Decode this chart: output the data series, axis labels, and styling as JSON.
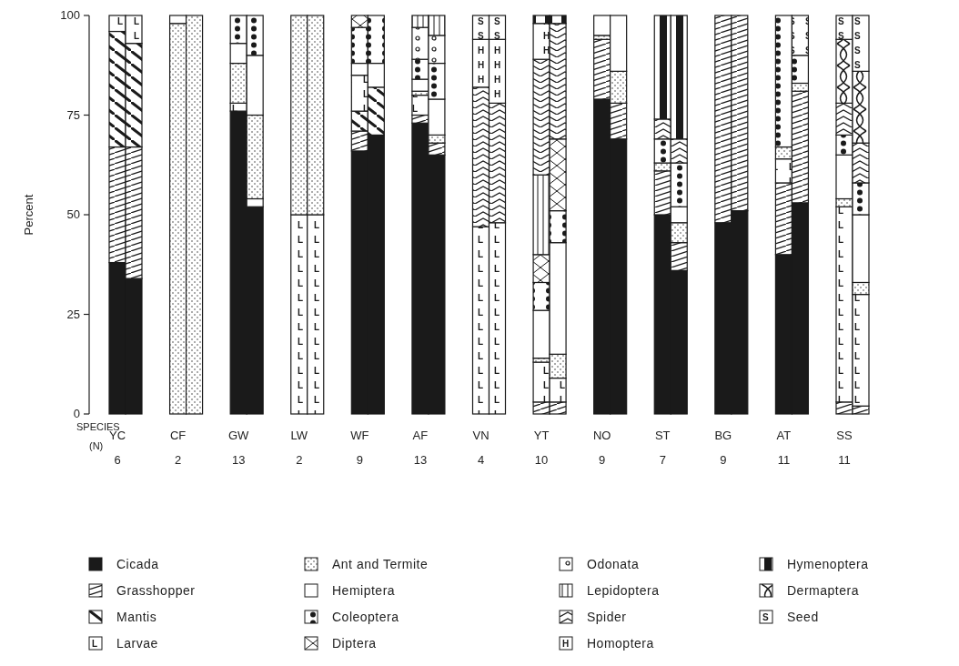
{
  "chart_data": {
    "type": "bar",
    "stacked": true,
    "ylabel": "Percent",
    "categories": [
      "YC",
      null,
      "CF",
      null,
      "GW",
      null,
      "LW",
      null,
      "WF",
      null,
      "AF",
      null,
      "VN",
      null,
      "YT",
      null,
      "NO",
      null,
      "ST",
      null,
      "BG",
      null,
      "AT",
      null,
      "SS",
      null
    ],
    "ylim": [
      0,
      100
    ],
    "yticks": [
      0,
      25,
      50,
      75,
      100
    ],
    "grid": false,
    "legend": "bottom",
    "annotations": [
      "SPECIES",
      "(N)",
      "6",
      "2",
      "13",
      "2",
      "9",
      "13",
      "4",
      "10",
      "9",
      "7",
      "9",
      "11",
      "11"
    ],
    "series": [
      {
        "name": "Cicada",
        "color": "#1a1a1a",
        "values": [
          38,
          34,
          0,
          0,
          76,
          52,
          0,
          0,
          66,
          70,
          73,
          65,
          0,
          0,
          0,
          0,
          79,
          69,
          50,
          36,
          48,
          51,
          40,
          53,
          0,
          0
        ]
      },
      {
        "name": "Grasshopper",
        "color": "#1a1a1a",
        "values": [
          29,
          33,
          0,
          0,
          0,
          0,
          0,
          0,
          5,
          0,
          2,
          3,
          0,
          0,
          3,
          3,
          15,
          9,
          11,
          7,
          52,
          49,
          18,
          28,
          3,
          2
        ]
      },
      {
        "name": "Mantis",
        "color": "#1a1a1a",
        "values": [
          29,
          26,
          0,
          0,
          0,
          0,
          0,
          0,
          5,
          12,
          0,
          0,
          0,
          0,
          0,
          0,
          0,
          0,
          0,
          0,
          0,
          0,
          0,
          0,
          0,
          0
        ]
      },
      {
        "name": "Larvae",
        "color": "#1a1a1a",
        "values": [
          4,
          7,
          0,
          0,
          2,
          2,
          50,
          50,
          9,
          0,
          5,
          0,
          47,
          48,
          10,
          6,
          0,
          0,
          0,
          0,
          0,
          0,
          6,
          0,
          49,
          28
        ]
      },
      {
        "name": "Ant and Termite",
        "color": "#1a1a1a",
        "values": [
          0,
          0,
          98,
          100,
          10,
          21,
          50,
          50,
          0,
          0,
          1,
          2,
          0,
          0,
          1,
          6,
          1,
          8,
          2,
          5,
          0,
          0,
          3,
          2,
          2,
          3
        ]
      },
      {
        "name": "Hemiptera",
        "color": "#1a1a1a",
        "values": [
          0,
          0,
          2,
          0,
          5,
          15,
          0,
          0,
          3,
          6,
          3,
          9,
          0,
          0,
          12,
          28,
          5,
          14,
          0,
          4,
          0,
          0,
          0,
          0,
          11,
          17
        ]
      },
      {
        "name": "Coleoptera",
        "color": "#1a1a1a",
        "values": [
          0,
          0,
          0,
          0,
          7,
          10,
          0,
          0,
          9,
          12,
          5,
          9,
          0,
          0,
          7,
          8,
          0,
          0,
          6,
          11,
          0,
          0,
          33,
          7,
          5,
          8
        ]
      },
      {
        "name": "Diptera",
        "color": "#1a1a1a",
        "values": [
          0,
          0,
          0,
          0,
          0,
          0,
          0,
          0,
          3,
          0,
          0,
          0,
          0,
          0,
          7,
          18,
          0,
          0,
          0,
          0,
          0,
          0,
          0,
          0,
          0,
          0
        ]
      },
      {
        "name": "Odonata",
        "color": "#1a1a1a",
        "values": [
          0,
          0,
          0,
          0,
          0,
          0,
          0,
          0,
          0,
          0,
          8,
          7,
          0,
          0,
          0,
          0,
          0,
          0,
          0,
          0,
          0,
          0,
          0,
          0,
          0,
          0
        ]
      },
      {
        "name": "Lepidoptera",
        "color": "#1a1a1a",
        "values": [
          0,
          0,
          0,
          0,
          0,
          0,
          0,
          0,
          0,
          0,
          3,
          5,
          0,
          0,
          20,
          0,
          0,
          0,
          0,
          0,
          0,
          0,
          0,
          0,
          0,
          0
        ]
      },
      {
        "name": "Spider",
        "color": "#1a1a1a",
        "values": [
          0,
          0,
          0,
          0,
          0,
          0,
          0,
          0,
          0,
          0,
          0,
          0,
          35,
          30,
          29,
          29,
          0,
          0,
          5,
          6,
          0,
          0,
          0,
          0,
          8,
          10
        ]
      },
      {
        "name": "Homoptera",
        "color": "#1a1a1a",
        "values": [
          0,
          0,
          0,
          0,
          0,
          0,
          0,
          0,
          0,
          0,
          0,
          0,
          12,
          16,
          9,
          0,
          0,
          0,
          0,
          0,
          0,
          0,
          0,
          0,
          0,
          0
        ]
      },
      {
        "name": "Hymenoptera",
        "color": "#1a1a1a",
        "values": [
          0,
          0,
          0,
          0,
          0,
          0,
          0,
          0,
          0,
          0,
          0,
          0,
          0,
          0,
          2,
          2,
          0,
          0,
          26,
          31,
          0,
          0,
          0,
          0,
          0,
          0
        ]
      },
      {
        "name": "Dermaptera",
        "color": "#1a1a1a",
        "values": [
          0,
          0,
          0,
          0,
          0,
          0,
          0,
          0,
          0,
          0,
          0,
          0,
          0,
          0,
          0,
          0,
          0,
          0,
          0,
          0,
          0,
          0,
          0,
          0,
          16,
          18
        ]
      },
      {
        "name": "Seed",
        "color": "#1a1a1a",
        "values": [
          0,
          0,
          0,
          0,
          0,
          0,
          0,
          0,
          0,
          0,
          0,
          0,
          6,
          6,
          0,
          0,
          0,
          0,
          0,
          0,
          0,
          0,
          0,
          10,
          6,
          14
        ]
      }
    ]
  }
}
